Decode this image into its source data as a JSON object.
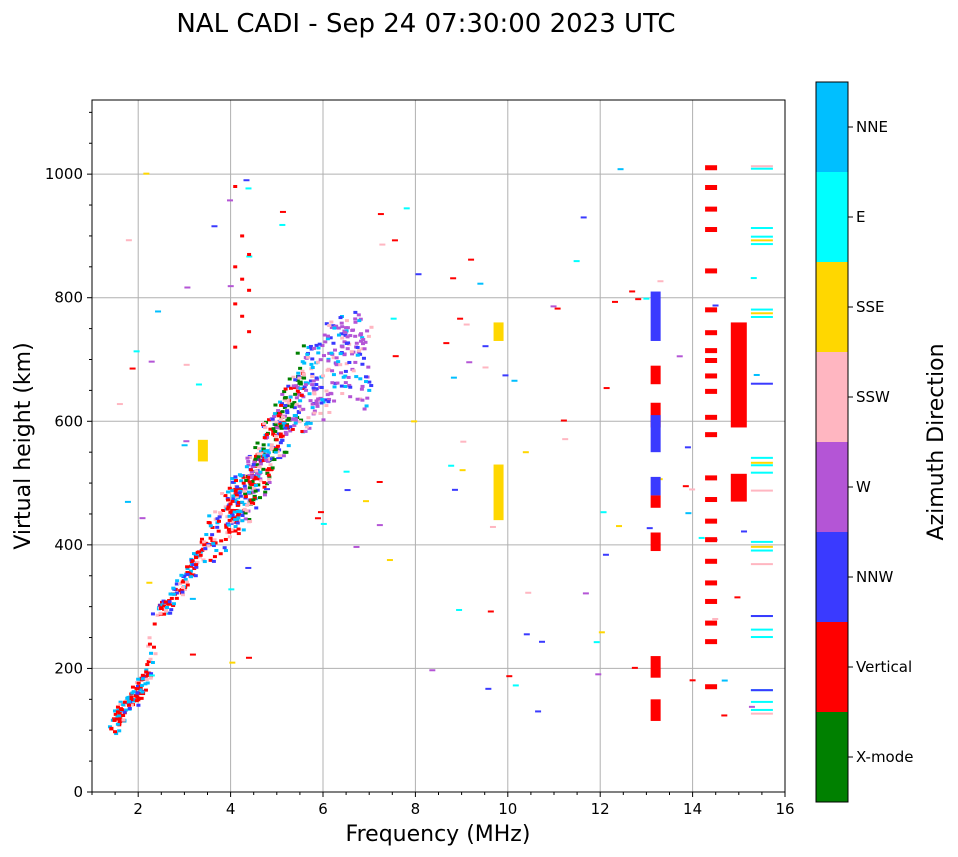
{
  "chart_data": {
    "type": "scatter",
    "title": "NAL CADI - Sep 24 07:30:00 2023 UTC",
    "xlabel": "Frequency (MHz)",
    "ylabel": "Virtual height (km)",
    "xlim": [
      1,
      16
    ],
    "ylim": [
      0,
      1120
    ],
    "xticks": [
      2,
      4,
      6,
      8,
      10,
      12,
      14,
      16
    ],
    "yticks": [
      0,
      200,
      400,
      600,
      800,
      1000
    ],
    "grid": true,
    "colorbar": {
      "label": "Azimuth Direction",
      "categories": [
        {
          "name": "X-mode",
          "color": "#008000"
        },
        {
          "name": "Vertical",
          "color": "#ff0000"
        },
        {
          "name": "NNW",
          "color": "#3a3aff"
        },
        {
          "name": "W",
          "color": "#b455d6"
        },
        {
          "name": "SSW",
          "color": "#ffb6c1"
        },
        {
          "name": "SSE",
          "color": "#ffd700"
        },
        {
          "name": "E",
          "color": "#00ffff"
        },
        {
          "name": "NNE",
          "color": "#00bfff"
        }
      ]
    },
    "trace": {
      "description_points": "ionogram echo trace (frequency MHz, virtual height km)",
      "main_trace": [
        [
          1.5,
          100
        ],
        [
          1.6,
          120
        ],
        [
          1.7,
          140
        ],
        [
          1.9,
          150
        ],
        [
          2.0,
          165
        ],
        [
          2.2,
          185
        ],
        [
          2.4,
          290
        ],
        [
          2.6,
          300
        ],
        [
          2.8,
          320
        ],
        [
          3.0,
          340
        ],
        [
          3.2,
          370
        ],
        [
          3.4,
          390
        ],
        [
          3.6,
          410
        ],
        [
          3.8,
          430
        ],
        [
          4.0,
          450
        ],
        [
          4.2,
          470
        ],
        [
          4.4,
          490
        ],
        [
          4.6,
          520
        ],
        [
          4.8,
          550
        ],
        [
          5.0,
          580
        ],
        [
          5.2,
          610
        ],
        [
          5.5,
          640
        ],
        [
          5.8,
          660
        ],
        [
          6.2,
          690
        ],
        [
          6.6,
          710
        ],
        [
          7.0,
          680
        ]
      ]
    },
    "vertical_bars": [
      {
        "freq": 13.2,
        "color_index": 2,
        "from": 730,
        "to": 810
      },
      {
        "freq": 13.2,
        "color_index": 1,
        "from": 660,
        "to": 690
      },
      {
        "freq": 13.2,
        "color_index": 1,
        "from": 590,
        "to": 630
      },
      {
        "freq": 13.2,
        "color_index": 2,
        "from": 550,
        "to": 610
      },
      {
        "freq": 13.2,
        "color_index": 2,
        "from": 480,
        "to": 510
      },
      {
        "freq": 13.2,
        "color_index": 1,
        "from": 460,
        "to": 480
      },
      {
        "freq": 13.2,
        "color_index": 1,
        "from": 390,
        "to": 420
      },
      {
        "freq": 13.2,
        "color_index": 1,
        "from": 185,
        "to": 220
      },
      {
        "freq": 13.2,
        "color_index": 1,
        "from": 115,
        "to": 150
      },
      {
        "freq": 15.0,
        "color_index": 1,
        "from": 590,
        "to": 760
      },
      {
        "freq": 15.0,
        "color_index": 1,
        "from": 470,
        "to": 515
      },
      {
        "freq": 9.8,
        "color_index": 5,
        "from": 440,
        "to": 530
      },
      {
        "freq": 9.8,
        "color_index": 5,
        "from": 730,
        "to": 760
      },
      {
        "freq": 3.4,
        "color_index": 5,
        "from": 535,
        "to": 570
      }
    ],
    "dashes": [
      {
        "freq": 14.4,
        "heights": [
          1012,
          980,
          945,
          912,
          845,
          782,
          745,
          716,
          700,
          675,
          650,
          608,
          580,
          510,
          475,
          440,
          410,
          375,
          340,
          310,
          275,
          245,
          172
        ],
        "color_index": 1
      },
      {
        "freq": 15.5,
        "heights": [
          1008,
          912,
          898,
          886,
          780,
          768,
          540,
          528,
          516,
          404,
          390,
          284,
          262,
          250,
          164,
          145,
          132
        ],
        "color_index": 6
      },
      {
        "freq": 15.5,
        "heights": [
          892,
          774,
          532,
          396
        ],
        "color_index": 5
      },
      {
        "freq": 15.5,
        "heights": [
          1012,
          487,
          368,
          126
        ],
        "color_index": 4
      },
      {
        "freq": 15.5,
        "heights": [
          660,
          284,
          164
        ],
        "color_index": 2
      }
    ]
  }
}
